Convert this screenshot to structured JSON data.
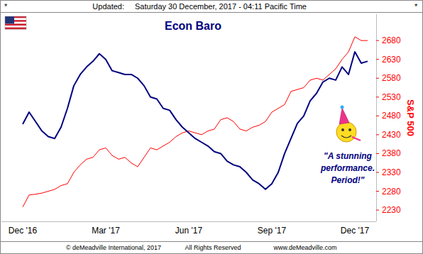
{
  "chart_data": {
    "type": "line",
    "title": "Econ Baro",
    "header_marks": [
      "*",
      "*"
    ],
    "updated_label": "Updated:",
    "updated": "Saturday 30 December, 2017 - 04:11 Pacific Time",
    "y_label": "S&P 500",
    "annotation": [
      "\"A stunning",
      "performance.",
      "Period!\""
    ],
    "footer": [
      "© deMeadville International, 2017",
      "All Rights Reserved",
      "www.deMeadville.com"
    ],
    "categories": [
      "Dec '16",
      null,
      null,
      null,
      null,
      null,
      null,
      null,
      null,
      null,
      null,
      null,
      null,
      "Mar '17",
      null,
      null,
      null,
      null,
      null,
      null,
      null,
      null,
      null,
      null,
      null,
      null,
      "Jun '17",
      null,
      null,
      null,
      null,
      null,
      null,
      null,
      null,
      null,
      null,
      null,
      null,
      "Sep '17",
      null,
      null,
      null,
      null,
      null,
      null,
      null,
      null,
      null,
      null,
      null,
      null,
      "Dec '17",
      null,
      null
    ],
    "series": [
      {
        "color": "#000080",
        "line_style": "solid",
        "values": [
          2458,
          2490,
          2465,
          2440,
          2425,
          2420,
          2450,
          2500,
          2560,
          2590,
          2610,
          2625,
          2645,
          2630,
          2600,
          2595,
          2590,
          2590,
          2580,
          2560,
          2530,
          2525,
          2500,
          2495,
          2470,
          2450,
          2435,
          2420,
          2410,
          2400,
          2385,
          2380,
          2360,
          2350,
          2345,
          2330,
          2310,
          2300,
          2285,
          2300,
          2330,
          2380,
          2420,
          2460,
          2480,
          2520,
          2540,
          2570,
          2580,
          2575,
          2610,
          2590,
          2650,
          2620,
          2625
        ]
      },
      {
        "color": "#ff0000",
        "line_style": "solid",
        "values": [
          2238,
          2270,
          2272,
          2275,
          2280,
          2285,
          2295,
          2300,
          2330,
          2350,
          2365,
          2370,
          2390,
          2395,
          2375,
          2365,
          2370,
          2355,
          2345,
          2370,
          2395,
          2390,
          2400,
          2410,
          2425,
          2435,
          2440,
          2435,
          2430,
          2440,
          2445,
          2470,
          2475,
          2465,
          2445,
          2440,
          2450,
          2455,
          2465,
          2490,
          2500,
          2510,
          2545,
          2550,
          2555,
          2575,
          2580,
          2575,
          2590,
          2605,
          2630,
          2650,
          2690,
          2680,
          2680
        ]
      }
    ],
    "ylim": [
      2200,
      2750
    ],
    "yticks": [
      2230,
      2280,
      2330,
      2380,
      2430,
      2480,
      2530,
      2580,
      2630,
      2680
    ],
    "grid": false
  }
}
